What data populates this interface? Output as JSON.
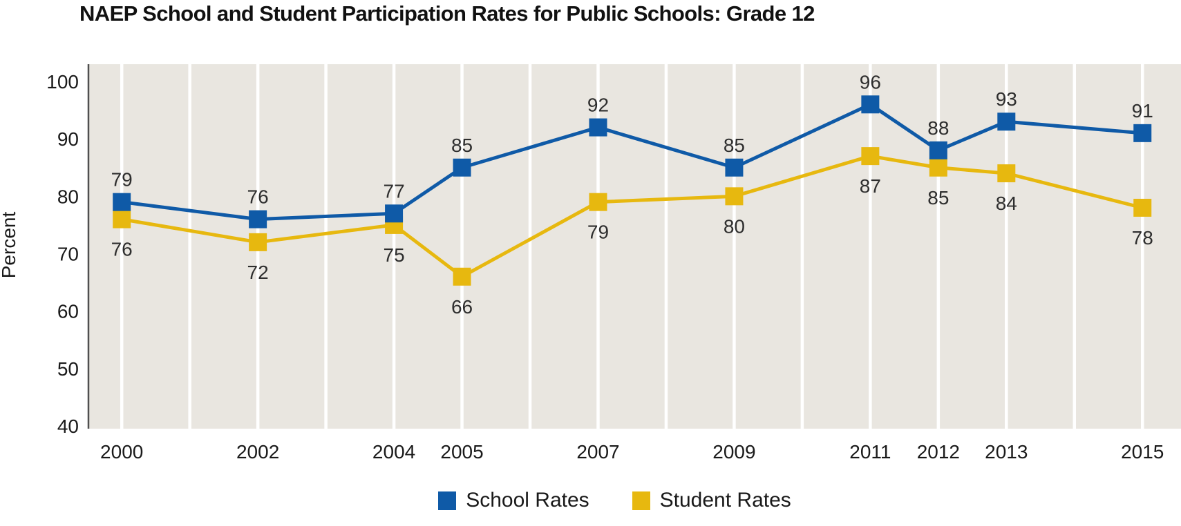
{
  "title": "NAEP School and Student Participation Rates for Public Schools: Grade 12",
  "chart_data": {
    "type": "line",
    "x": [
      2000,
      2002,
      2004,
      2005,
      2007,
      2009,
      2011,
      2012,
      2013,
      2015
    ],
    "series": [
      {
        "name": "School Rates",
        "color": "#0f5aa7",
        "values": [
          79,
          76,
          77,
          85,
          92,
          85,
          96,
          88,
          93,
          91
        ],
        "label_position": "above"
      },
      {
        "name": "Student Rates",
        "color": "#e7b80f",
        "values": [
          76,
          72,
          75,
          66,
          79,
          80,
          87,
          85,
          84,
          78
        ],
        "label_position": "below"
      }
    ],
    "ylabel": "Percent",
    "yticks": [
      40,
      50,
      60,
      70,
      80,
      90,
      100
    ],
    "ylim": [
      40,
      100
    ],
    "xlim": [
      1999.5,
      2016.1
    ],
    "gridlines": {
      "orientation": "vertical",
      "color": "#ffffff",
      "year_start": 2000,
      "year_end": 2015,
      "step": 1
    },
    "legend_position": "bottom-center",
    "colors": {
      "plot_background": "#e9e6e0",
      "axis_line": "#4f4f4f",
      "tick_label": "#1a1a1a",
      "data_label": "#2e2e2e"
    }
  }
}
